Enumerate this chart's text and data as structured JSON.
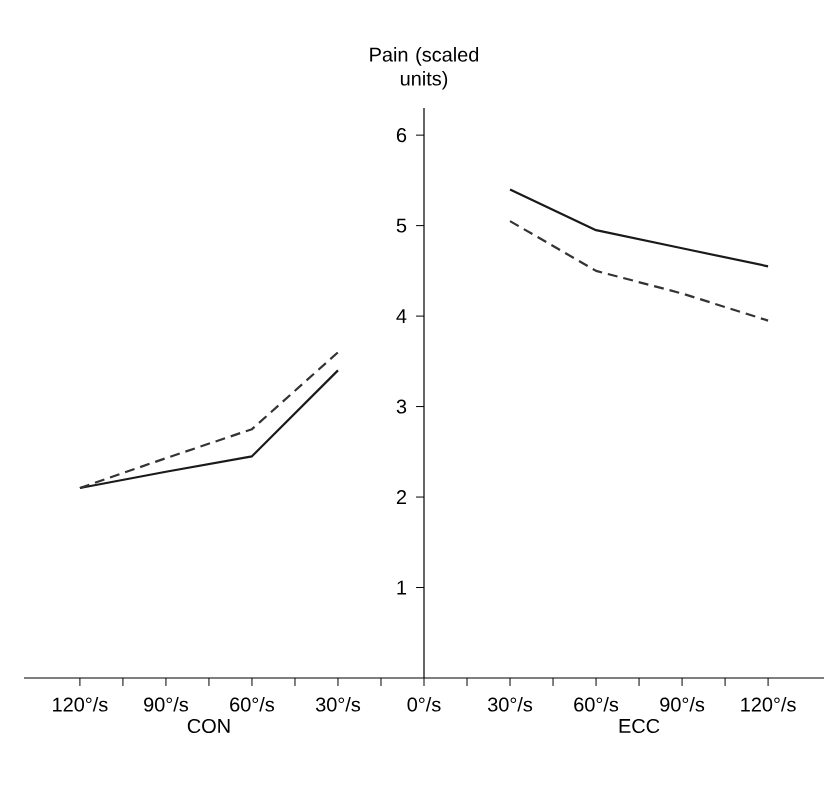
{
  "chart_data": {
    "type": "line",
    "ylabel": "Pain (scaled units)",
    "categories": [
      "120°/s",
      "90°/s",
      "60°/s",
      "30°/s",
      "0°/s",
      "30°/s",
      "60°/s",
      "90°/s",
      "120°/s"
    ],
    "series": [
      {
        "color": "#1a1a1a",
        "line_style": "solid",
        "values": [
          2.1,
          2.28,
          2.45,
          3.4,
          null,
          5.4,
          4.95,
          4.75,
          4.55
        ]
      },
      {
        "color": "#333333",
        "line_style": "dashed",
        "values": [
          2.1,
          2.43,
          2.75,
          3.6,
          null,
          5.05,
          4.5,
          4.25,
          3.95
        ]
      }
    ],
    "ylim": [
      0,
      6.3
    ],
    "yticks": [
      1,
      2,
      3,
      4,
      5,
      6
    ],
    "annotations": [
      "CON",
      "ECC"
    ],
    "grid": false,
    "marker": "none"
  }
}
